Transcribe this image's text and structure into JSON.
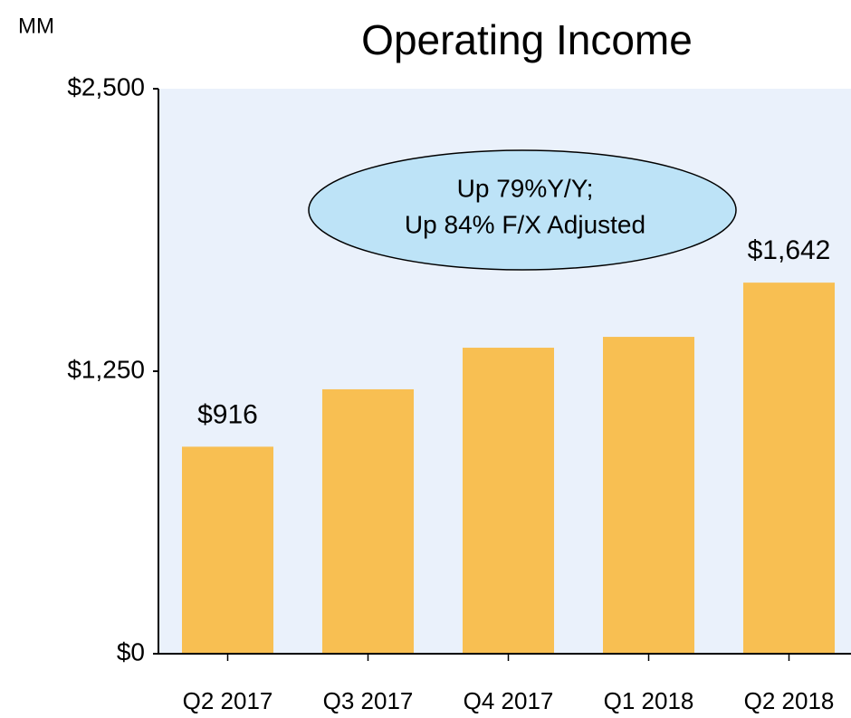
{
  "chart_data": {
    "type": "bar",
    "title": "Operating Income",
    "y_label": "MM",
    "categories": [
      "Q2 2017",
      "Q3 2017",
      "Q4 2017",
      "Q1 2018",
      "Q2 2018"
    ],
    "values": [
      916,
      1170,
      1354,
      1402,
      1642
    ],
    "value_labels": [
      "$916",
      null,
      null,
      null,
      "$1,642"
    ],
    "color": "#f8bf52",
    "ylim": [
      0,
      2500
    ],
    "yticks": [
      {
        "value": 0,
        "label": "$0"
      },
      {
        "value": 1250,
        "label": "$1,250"
      },
      {
        "value": 2500,
        "label": "$2,500"
      }
    ],
    "annotation": [
      "Up 79%Y/Y;",
      "Up 84% F/X Adjusted"
    ]
  }
}
